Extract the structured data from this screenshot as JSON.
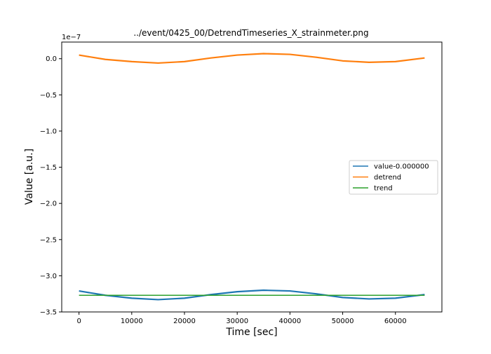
{
  "chart_data": {
    "type": "line",
    "title": "../event/0425_00/DetrendTimeseries_X_strainmeter.png",
    "xlabel": "Time [sec]",
    "ylabel": "Value [a.u.]",
    "y_offset_label": "1e−7",
    "xlim": [
      -3277,
      68813
    ],
    "ylim": [
      -3.5,
      0.23
    ],
    "y_scale_factor": "1e-7",
    "x_ticks": [
      0,
      10000,
      20000,
      30000,
      40000,
      50000,
      60000
    ],
    "x_tick_labels": [
      "0",
      "10000",
      "20000",
      "30000",
      "40000",
      "50000",
      "60000"
    ],
    "y_ticks": [
      0.0,
      -0.5,
      -1.0,
      -1.5,
      -2.0,
      -2.5,
      -3.0,
      -3.5
    ],
    "y_tick_labels": [
      "0.0",
      "−0.5",
      "−1.0",
      "−1.5",
      "−2.0",
      "−2.5",
      "−3.0",
      "−3.5"
    ],
    "grid": false,
    "legend_position": "center-right",
    "x": [
      0,
      5000,
      10000,
      15000,
      20000,
      25000,
      30000,
      35000,
      40000,
      45000,
      50000,
      55000,
      60000,
      65536
    ],
    "series": [
      {
        "name": "value-0.000000",
        "color": "#1f77b4",
        "values": [
          -3.21,
          -3.27,
          -3.31,
          -3.33,
          -3.31,
          -3.26,
          -3.22,
          -3.2,
          -3.21,
          -3.25,
          -3.3,
          -3.32,
          -3.31,
          -3.26
        ]
      },
      {
        "name": "detrend",
        "color": "#ff7f0e",
        "values": [
          0.05,
          -0.01,
          -0.04,
          -0.06,
          -0.04,
          0.01,
          0.05,
          0.07,
          0.06,
          0.02,
          -0.03,
          -0.05,
          -0.04,
          0.01
        ]
      },
      {
        "name": "trend",
        "color": "#2ca02c",
        "values": [
          -3.27,
          -3.27,
          -3.27,
          -3.27,
          -3.27,
          -3.27,
          -3.27,
          -3.27,
          -3.27,
          -3.27,
          -3.27,
          -3.27,
          -3.27,
          -3.27
        ]
      }
    ]
  }
}
